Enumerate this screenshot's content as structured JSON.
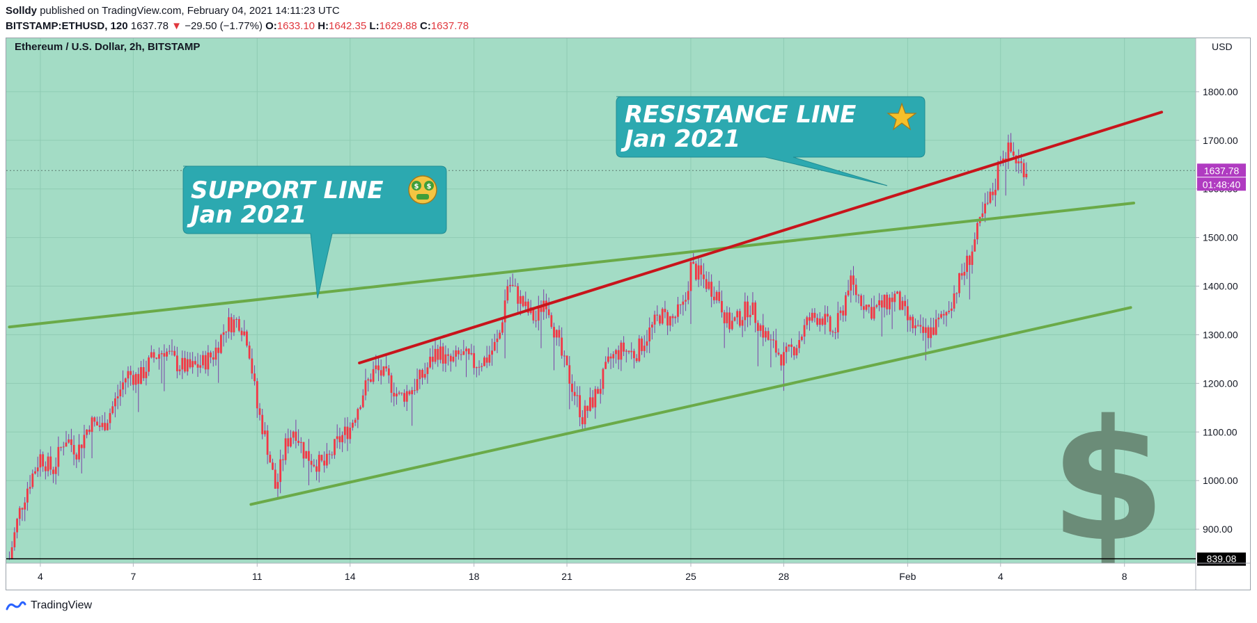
{
  "header": {
    "author": "Solldy",
    "published_text": "published on TradingView.com, February 04, 2021 14:11:23 UTC",
    "symbol": "BITSTAMP:ETHUSD, 120",
    "last": "1637.78",
    "change": "−29.50 (−1.77%)",
    "o_label": "O:",
    "o_value": "1633.10",
    "h_label": "H:",
    "h_value": "1642.35",
    "l_label": "L:",
    "l_value": "1629.88",
    "c_label": "C:",
    "c_value": "1637.78"
  },
  "pane": {
    "title": "Ethereum / U.S. Dollar, 2h, BITSTAMP",
    "currency": "USD",
    "price_tag": "1637.78",
    "countdown": "01:48:40",
    "low_tag": "839.08"
  },
  "annotations": {
    "support": {
      "line1": "SUPPORT LINE",
      "line2": "Jan 2021",
      "emoji": "money-mouth-face-icon"
    },
    "resistance": {
      "line1": "RESISTANCE LINE",
      "line2": "Jan 2021",
      "emoji": "star-icon"
    }
  },
  "footer": {
    "brand": "TradingView"
  },
  "colors": {
    "background": "#a3dcc5",
    "candle": "#f23645",
    "wick": "#7b3fa6",
    "support_line": "#6aaa48",
    "resistance_line": "#c8141b",
    "callout": "#2ca9b0",
    "price_tag": "#b03bc1",
    "dollar": "#6b8c78"
  },
  "chart_data": {
    "type": "candlestick",
    "title": "Ethereum / U.S. Dollar, 2h, BITSTAMP",
    "ylabel": "USD",
    "ylim": [
      830,
      1910
    ],
    "yticks": [
      900,
      1000,
      1100,
      1200,
      1300,
      1400,
      1500,
      1600,
      1700,
      1800
    ],
    "ytick_labels": [
      "900.00",
      "1000.00",
      "1100.00",
      "1200.00",
      "1300.00",
      "1400.00",
      "1500.00",
      "1600.00",
      "1700.00",
      "1800.00"
    ],
    "xticks": [
      {
        "label": "4",
        "t": 4
      },
      {
        "label": "7",
        "t": 7
      },
      {
        "label": "11",
        "t": 11
      },
      {
        "label": "14",
        "t": 14
      },
      {
        "label": "18",
        "t": 18
      },
      {
        "label": "21",
        "t": 21
      },
      {
        "label": "25",
        "t": 25
      },
      {
        "label": "28",
        "t": 28
      },
      {
        "label": "Feb",
        "t": 32
      },
      {
        "label": "4",
        "t": 35
      },
      {
        "label": "8",
        "t": 39
      }
    ],
    "xlim": [
      2.9,
      41.3
    ],
    "price_path": [
      [
        3.0,
        840
      ],
      [
        3.3,
        930
      ],
      [
        3.6,
        990
      ],
      [
        4.0,
        1050
      ],
      [
        4.4,
        1020
      ],
      [
        4.8,
        1090
      ],
      [
        5.2,
        1060
      ],
      [
        5.6,
        1120
      ],
      [
        6.0,
        1110
      ],
      [
        6.4,
        1160
      ],
      [
        6.8,
        1220
      ],
      [
        7.2,
        1210
      ],
      [
        7.6,
        1250
      ],
      [
        8.0,
        1270
      ],
      [
        8.4,
        1240
      ],
      [
        8.8,
        1230
      ],
      [
        9.2,
        1240
      ],
      [
        9.6,
        1260
      ],
      [
        10.0,
        1320
      ],
      [
        10.4,
        1330
      ],
      [
        10.7,
        1290
      ],
      [
        11.0,
        1150
      ],
      [
        11.3,
        1080
      ],
      [
        11.6,
        980
      ],
      [
        11.9,
        1070
      ],
      [
        12.2,
        1110
      ],
      [
        12.5,
        1060
      ],
      [
        12.8,
        1040
      ],
      [
        13.2,
        1030
      ],
      [
        13.6,
        1080
      ],
      [
        14.0,
        1110
      ],
      [
        14.4,
        1180
      ],
      [
        14.8,
        1230
      ],
      [
        15.2,
        1210
      ],
      [
        15.6,
        1170
      ],
      [
        16.0,
        1190
      ],
      [
        16.4,
        1220
      ],
      [
        16.8,
        1270
      ],
      [
        17.2,
        1240
      ],
      [
        17.6,
        1260
      ],
      [
        18.0,
        1240
      ],
      [
        18.4,
        1250
      ],
      [
        18.8,
        1290
      ],
      [
        19.1,
        1410
      ],
      [
        19.4,
        1380
      ],
      [
        19.7,
        1350
      ],
      [
        20.0,
        1330
      ],
      [
        20.3,
        1380
      ],
      [
        20.6,
        1310
      ],
      [
        20.9,
        1240
      ],
      [
        21.2,
        1190
      ],
      [
        21.5,
        1130
      ],
      [
        21.8,
        1160
      ],
      [
        22.1,
        1200
      ],
      [
        22.4,
        1250
      ],
      [
        22.8,
        1270
      ],
      [
        23.2,
        1260
      ],
      [
        23.6,
        1300
      ],
      [
        24.0,
        1340
      ],
      [
        24.4,
        1330
      ],
      [
        24.8,
        1360
      ],
      [
        25.0,
        1440
      ],
      [
        25.3,
        1420
      ],
      [
        25.6,
        1400
      ],
      [
        25.9,
        1380
      ],
      [
        26.2,
        1320
      ],
      [
        26.5,
        1330
      ],
      [
        26.9,
        1360
      ],
      [
        27.3,
        1310
      ],
      [
        27.6,
        1280
      ],
      [
        28.0,
        1250
      ],
      [
        28.4,
        1280
      ],
      [
        28.8,
        1330
      ],
      [
        29.2,
        1340
      ],
      [
        29.6,
        1300
      ],
      [
        29.9,
        1350
      ],
      [
        30.1,
        1410
      ],
      [
        30.4,
        1380
      ],
      [
        30.8,
        1350
      ],
      [
        31.2,
        1360
      ],
      [
        31.6,
        1380
      ],
      [
        32.0,
        1330
      ],
      [
        32.4,
        1300
      ],
      [
        32.8,
        1310
      ],
      [
        33.2,
        1340
      ],
      [
        33.6,
        1400
      ],
      [
        34.0,
        1460
      ],
      [
        34.4,
        1540
      ],
      [
        34.8,
        1600
      ],
      [
        35.0,
        1670
      ],
      [
        35.3,
        1680
      ],
      [
        35.6,
        1650
      ],
      [
        35.9,
        1638
      ]
    ],
    "trendlines": [
      {
        "name": "upper support",
        "color": "green",
        "from": [
          3.0,
          1316
        ],
        "to": [
          39.3,
          1571
        ]
      },
      {
        "name": "lower support",
        "color": "green",
        "from": [
          10.8,
          951
        ],
        "to": [
          39.2,
          1356
        ]
      },
      {
        "name": "resistance",
        "color": "red",
        "from": [
          14.3,
          1242
        ],
        "to": [
          40.2,
          1758
        ]
      }
    ],
    "last_price": 1637.78,
    "low_marker": 839.08
  }
}
